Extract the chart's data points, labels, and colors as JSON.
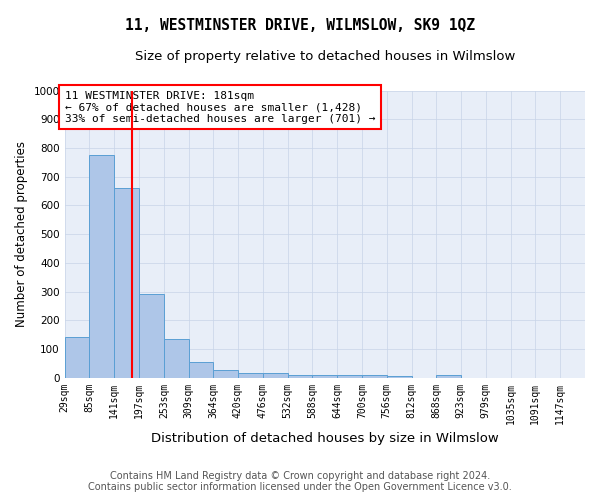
{
  "title": "11, WESTMINSTER DRIVE, WILMSLOW, SK9 1QZ",
  "subtitle": "Size of property relative to detached houses in Wilmslow",
  "xlabel": "Distribution of detached houses by size in Wilmslow",
  "ylabel": "Number of detached properties",
  "bin_labels": [
    "29sqm",
    "85sqm",
    "141sqm",
    "197sqm",
    "253sqm",
    "309sqm",
    "364sqm",
    "420sqm",
    "476sqm",
    "532sqm",
    "588sqm",
    "644sqm",
    "700sqm",
    "756sqm",
    "812sqm",
    "868sqm",
    "923sqm",
    "979sqm",
    "1035sqm",
    "1091sqm",
    "1147sqm"
  ],
  "bar_values": [
    140,
    775,
    660,
    290,
    135,
    53,
    27,
    18,
    16,
    10,
    8,
    10,
    8,
    7,
    0,
    10,
    0,
    0,
    0,
    0
  ],
  "bar_color": "#aec6e8",
  "bar_edge_color": "#5a9fd4",
  "grid_color": "#c8d4e8",
  "background_color": "#e8eef8",
  "red_line_x": 181,
  "bin_edges_sqm": [
    29,
    85,
    141,
    197,
    253,
    309,
    364,
    420,
    476,
    532,
    588,
    644,
    700,
    756,
    812,
    868,
    923,
    979,
    1035,
    1091,
    1147
  ],
  "annotation_title": "11 WESTMINSTER DRIVE: 181sqm",
  "annotation_line1": "← 67% of detached houses are smaller (1,428)",
  "annotation_line2": "33% of semi-detached houses are larger (701) →",
  "footnote1": "Contains HM Land Registry data © Crown copyright and database right 2024.",
  "footnote2": "Contains public sector information licensed under the Open Government Licence v3.0.",
  "ylim": [
    0,
    1000
  ],
  "yticks": [
    0,
    100,
    200,
    300,
    400,
    500,
    600,
    700,
    800,
    900,
    1000
  ],
  "title_fontsize": 10.5,
  "subtitle_fontsize": 9.5,
  "xlabel_fontsize": 9.5,
  "ylabel_fontsize": 8.5,
  "tick_fontsize": 7,
  "annotation_fontsize": 8,
  "footnote_fontsize": 7
}
